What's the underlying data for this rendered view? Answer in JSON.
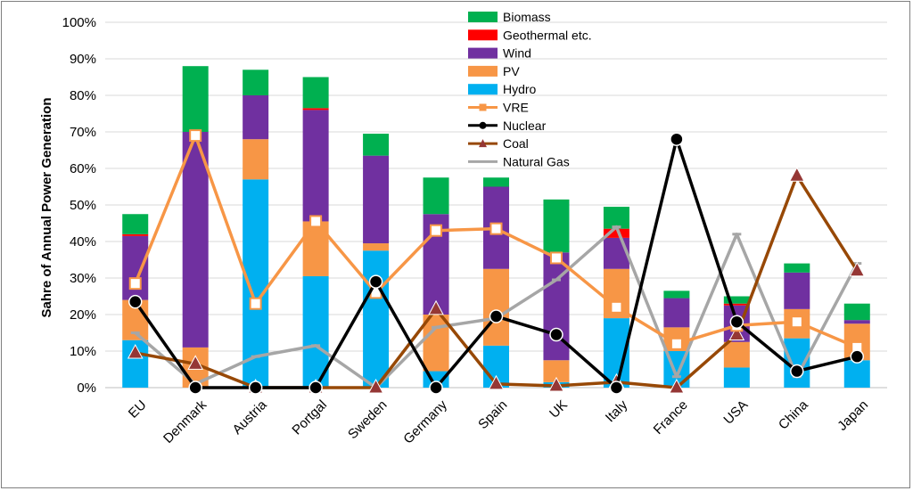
{
  "chart_data": {
    "type": "bar",
    "subtype": "stacked bar with line overlays",
    "title": "",
    "xlabel": "",
    "ylabel": "Sahre of Annual Power Generation",
    "ylim": [
      0,
      100
    ],
    "y_ticks": [
      "0%",
      "10%",
      "20%",
      "30%",
      "40%",
      "50%",
      "60%",
      "70%",
      "80%",
      "90%",
      "100%"
    ],
    "grid": true,
    "legend_position": "top-center",
    "categories": [
      "EU",
      "Denmark",
      "Austria",
      "Portgal",
      "Sweden",
      "Germany",
      "Spain",
      "UK",
      "Italy",
      "France",
      "USA",
      "China",
      "Japan"
    ],
    "stacked_series": [
      {
        "name": "Hydro",
        "color": "#00b0f0",
        "values": [
          13,
          0,
          57,
          30.5,
          37.5,
          4.5,
          11.5,
          1.5,
          19,
          10,
          5.5,
          13.5,
          7.5
        ]
      },
      {
        "name": "PV",
        "color": "#f79646",
        "values": [
          11,
          11,
          11,
          15,
          2,
          15.5,
          21,
          6,
          13.5,
          6.5,
          7,
          8,
          10
        ]
      },
      {
        "name": "Wind",
        "color": "#7030a0",
        "values": [
          17.5,
          59,
          12,
          30.5,
          24,
          27.5,
          22.5,
          29.5,
          8.5,
          8,
          10,
          10,
          1
        ]
      },
      {
        "name": "Geothermal etc.",
        "color": "#ff0000",
        "values": [
          0.5,
          0,
          0,
          0.5,
          0,
          0,
          0,
          0,
          2.5,
          0,
          0.5,
          0,
          0
        ]
      },
      {
        "name": "Biomass",
        "color": "#00b050",
        "values": [
          5.5,
          18,
          7,
          8.5,
          6,
          10,
          2.5,
          14.5,
          6,
          2,
          2,
          2.5,
          4.5
        ]
      }
    ],
    "line_series": [
      {
        "name": "VRE",
        "color": "#f79646",
        "marker": "square",
        "values": [
          28.5,
          69,
          23,
          45.5,
          26,
          43,
          43.5,
          35.5,
          22,
          12,
          17,
          18,
          11
        ]
      },
      {
        "name": "Nuclear",
        "color": "#000000",
        "marker": "circle",
        "values": [
          23.5,
          0,
          0,
          0,
          29,
          0,
          19.5,
          14.5,
          0,
          68,
          18,
          4.5,
          8.5
        ]
      },
      {
        "name": "Coal",
        "color": "#974806",
        "marker": "triangle",
        "values": [
          9.5,
          6.5,
          0,
          0,
          0,
          21.5,
          1,
          0.5,
          1.5,
          0,
          14.5,
          58,
          32
        ]
      },
      {
        "name": "Natural Gas",
        "color": "#a6a6a6",
        "marker": "none",
        "values": [
          15,
          1,
          8.5,
          11.5,
          0,
          16.5,
          19,
          29.5,
          44,
          3,
          42,
          3,
          34
        ]
      }
    ],
    "legend_order": [
      "Biomass",
      "Geothermal etc.",
      "Wind",
      "PV",
      "Hydro",
      "VRE",
      "Nuclear",
      "Coal",
      "Natural Gas"
    ]
  }
}
